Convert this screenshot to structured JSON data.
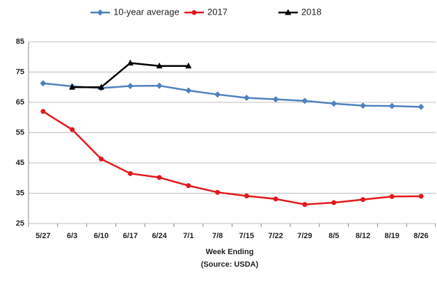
{
  "chart_data": {
    "type": "line",
    "categories": [
      "5/27",
      "6/3",
      "6/10",
      "6/17",
      "6/24",
      "7/1",
      "7/8",
      "7/15",
      "7/22",
      "7/29",
      "8/5",
      "8/12",
      "8/19",
      "8/26"
    ],
    "series": [
      {
        "name": "10-year average",
        "color": "#4f81bd",
        "marker": "diamond",
        "values": [
          71.3,
          70.3,
          69.7,
          70.4,
          70.5,
          68.9,
          67.6,
          66.5,
          66.0,
          65.5,
          64.6,
          63.9,
          63.8,
          63.5
        ]
      },
      {
        "name": "2017",
        "color": "#e3191c",
        "marker": "circle",
        "values": [
          62,
          56,
          46.3,
          41.5,
          40.2,
          37.5,
          35.3,
          34.1,
          33.1,
          31.3,
          31.9,
          32.9,
          33.9,
          34.0
        ]
      },
      {
        "name": "2018",
        "color": "#000000",
        "marker": "triangle",
        "values": [
          null,
          70,
          70,
          78,
          77,
          77,
          null,
          null,
          null,
          null,
          null,
          null,
          null,
          null
        ]
      }
    ],
    "ylim": [
      25,
      85
    ],
    "yticks": [
      25,
      35,
      45,
      55,
      65,
      75,
      85
    ],
    "grid": true,
    "x_label": "Week Ending",
    "source": "(Source: USDA)"
  }
}
